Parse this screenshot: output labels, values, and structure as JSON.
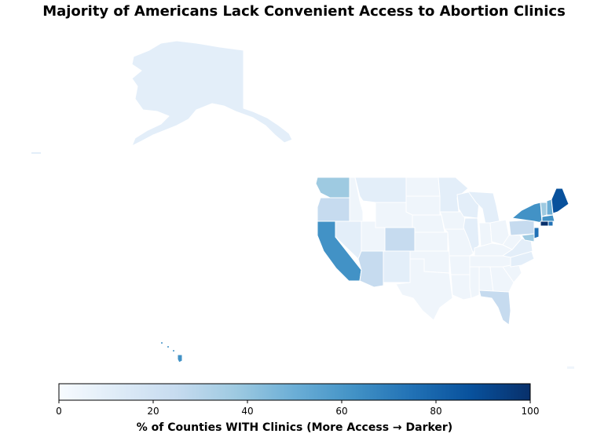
{
  "title": "Majority of Americans Lack Convenient Access to Abortion Clinics",
  "colorbar": {
    "label": "% of Counties WITH Clinics (More Access → Darker)",
    "colormap": "Blues",
    "ticks": [
      0,
      20,
      40,
      60,
      80,
      100
    ],
    "range": [
      0,
      100
    ]
  },
  "colors": {
    "c0": "#f7fbff",
    "c8": "#eff5fb",
    "c15": "#e3eef9",
    "c25": "#c6dbef",
    "c35": "#9ecae1",
    "c45": "#6baed6",
    "c55": "#4292c6",
    "c70": "#2171b5",
    "c85": "#08519c",
    "c100": "#08306b"
  }
}
